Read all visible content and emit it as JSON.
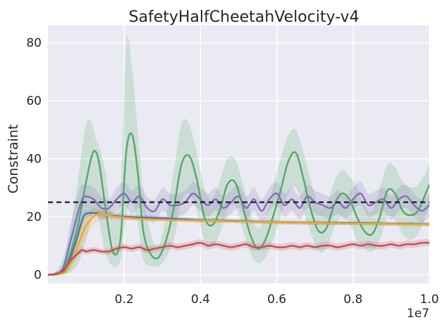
{
  "chart_data": {
    "type": "line",
    "title": "SafetyHalfCheetahVelocity-v4",
    "xlabel": "",
    "ylabel": "Constraint",
    "x_offset_label": "1e7",
    "xlim": [
      0,
      1.0
    ],
    "ylim": [
      -3,
      86
    ],
    "xticks": [
      0.2,
      0.4,
      0.6,
      0.8,
      1.0
    ],
    "xtick_labels": [
      "0.2",
      "0.4",
      "0.6",
      "0.8",
      "1.0"
    ],
    "yticks": [
      0,
      20,
      40,
      60,
      80
    ],
    "ytick_labels": [
      "0",
      "20",
      "40",
      "60",
      "80"
    ],
    "grid": true,
    "threshold": {
      "name": "cost limit",
      "value": 25,
      "style": "dashed",
      "color": "#111111"
    },
    "series": [
      {
        "name": "green",
        "color": "#55a868",
        "band_color": "#55a868",
        "x": [
          0,
          0.02,
          0.04,
          0.06,
          0.08,
          0.1,
          0.115,
          0.125,
          0.135,
          0.15,
          0.17,
          0.19,
          0.205,
          0.22,
          0.235,
          0.25,
          0.27,
          0.29,
          0.31,
          0.33,
          0.35,
          0.37,
          0.39,
          0.41,
          0.43,
          0.45,
          0.47,
          0.49,
          0.51,
          0.53,
          0.55,
          0.57,
          0.59,
          0.61,
          0.63,
          0.65,
          0.67,
          0.69,
          0.71,
          0.73,
          0.75,
          0.77,
          0.79,
          0.81,
          0.83,
          0.85,
          0.87,
          0.89,
          0.91,
          0.93,
          0.95,
          0.97,
          0.99,
          1.0
        ],
        "values": [
          0,
          0.3,
          2,
          8,
          18,
          32,
          41,
          42.5,
          38,
          24,
          8,
          12,
          42,
          48.5,
          36,
          15,
          7,
          6,
          12,
          23,
          38,
          41,
          33,
          20,
          17,
          22,
          31,
          32,
          24,
          14,
          9,
          12,
          20,
          29,
          39,
          42,
          33,
          22,
          15,
          16,
          24,
          28,
          26,
          20,
          15,
          14,
          20,
          29,
          28,
          22,
          20.5,
          22,
          28,
          31
        ],
        "lower": [
          0,
          0,
          0,
          1,
          4,
          12,
          20,
          22,
          18,
          8,
          3,
          5,
          20,
          25,
          18,
          5,
          3,
          3,
          6,
          12,
          25,
          28,
          22,
          12,
          10,
          14,
          22,
          24,
          16,
          8,
          4,
          6,
          12,
          20,
          28,
          30,
          22,
          14,
          8,
          9,
          16,
          20,
          18,
          12,
          9,
          8,
          12,
          20,
          19,
          14,
          12,
          14,
          20,
          24
        ],
        "upper": [
          0,
          1,
          6,
          16,
          34,
          52,
          52,
          47,
          44,
          36,
          20,
          28,
          80,
          72,
          50,
          28,
          14,
          10,
          20,
          36,
          52,
          52,
          42,
          30,
          26,
          32,
          40,
          40,
          32,
          22,
          16,
          20,
          30,
          40,
          48,
          50,
          42,
          32,
          24,
          24,
          32,
          36,
          34,
          30,
          24,
          22,
          30,
          38,
          37,
          32,
          30,
          31,
          35,
          38
        ]
      },
      {
        "name": "purple",
        "color": "#8172b3",
        "band_color": "#8172b3",
        "x": [
          0,
          0.02,
          0.04,
          0.06,
          0.08,
          0.09,
          0.1,
          0.12,
          0.14,
          0.16,
          0.18,
          0.2,
          0.22,
          0.24,
          0.26,
          0.28,
          0.3,
          0.32,
          0.34,
          0.36,
          0.38,
          0.4,
          0.42,
          0.44,
          0.46,
          0.48,
          0.5,
          0.52,
          0.54,
          0.56,
          0.58,
          0.6,
          0.62,
          0.64,
          0.66,
          0.68,
          0.7,
          0.72,
          0.74,
          0.76,
          0.78,
          0.8,
          0.82,
          0.84,
          0.86,
          0.88,
          0.9,
          0.92,
          0.94,
          0.96,
          0.98,
          1.0
        ],
        "values": [
          0,
          0.3,
          2.5,
          12,
          22,
          26,
          27,
          26,
          23,
          23,
          26,
          28,
          25,
          27,
          23,
          22,
          26,
          24,
          24,
          25,
          28,
          26,
          24,
          26,
          23,
          25,
          27,
          23,
          26,
          22,
          26,
          28,
          24,
          26,
          23,
          27,
          25,
          24,
          23,
          25,
          23,
          26,
          28,
          24,
          25,
          26,
          23,
          26,
          27,
          24,
          22,
          24
        ],
        "lower": [
          0,
          0,
          1,
          6,
          16,
          21,
          23,
          22,
          19,
          20,
          22,
          24,
          21,
          23,
          19,
          18,
          22,
          20,
          20,
          21,
          24,
          22,
          20,
          22,
          19,
          21,
          23,
          19,
          22,
          18,
          22,
          24,
          20,
          22,
          19,
          23,
          21,
          20,
          19,
          21,
          19,
          22,
          24,
          20,
          21,
          22,
          19,
          22,
          23,
          20,
          18,
          20
        ],
        "upper": [
          0,
          1,
          4,
          18,
          28,
          31,
          31,
          30,
          27,
          26,
          30,
          32,
          29,
          31,
          27,
          26,
          30,
          28,
          28,
          29,
          32,
          30,
          28,
          30,
          27,
          29,
          31,
          27,
          30,
          26,
          30,
          32,
          28,
          30,
          27,
          31,
          29,
          28,
          27,
          29,
          27,
          30,
          32,
          28,
          29,
          30,
          27,
          30,
          31,
          28,
          26,
          28
        ]
      },
      {
        "name": "blue",
        "color": "#4c72b0",
        "band_color": "#4c72b0",
        "x": [
          0,
          0.03,
          0.05,
          0.07,
          0.09,
          0.1,
          0.12,
          0.15,
          0.2,
          0.3,
          0.4,
          0.5,
          0.6,
          0.7,
          0.8,
          0.9,
          1.0
        ],
        "values": [
          0,
          0.3,
          3,
          10,
          19,
          21,
          21.3,
          20.8,
          20,
          19.5,
          18.8,
          18.5,
          18.1,
          17.9,
          17.8,
          17.6,
          17.4
        ],
        "lower": [
          0,
          0,
          2,
          8,
          17,
          19.5,
          20,
          19.6,
          19,
          18.7,
          18,
          17.8,
          17.4,
          17.2,
          17.1,
          16.9,
          16.7
        ],
        "upper": [
          0,
          1,
          4,
          12,
          21,
          22.5,
          22.6,
          22,
          21,
          20.3,
          19.6,
          19.2,
          18.8,
          18.6,
          18.5,
          18.3,
          18.1
        ]
      },
      {
        "name": "orange",
        "color": "#f5a623",
        "band_color": "#f5a623",
        "x": [
          0,
          0.03,
          0.05,
          0.07,
          0.09,
          0.1,
          0.12,
          0.14,
          0.18,
          0.25,
          0.35,
          0.45,
          0.55,
          0.65,
          0.75,
          0.85,
          0.95,
          1.0
        ],
        "values": [
          0,
          0.2,
          1.5,
          7,
          14,
          17,
          20,
          21,
          20,
          19.2,
          18.8,
          18.5,
          18.2,
          17.9,
          17.7,
          17.6,
          17.4,
          17.3
        ],
        "lower": [
          0,
          0,
          0.5,
          4,
          10,
          13,
          17,
          19,
          19,
          18.5,
          18.2,
          17.9,
          17.6,
          17.3,
          17.1,
          17,
          16.8,
          16.7
        ],
        "upper": [
          0,
          0.6,
          3,
          11,
          18,
          21,
          23,
          23,
          21.2,
          20,
          19.5,
          19.1,
          18.8,
          18.5,
          18.3,
          18.2,
          18,
          17.9
        ]
      },
      {
        "name": "red",
        "color": "#c44e52",
        "band_color": "#c44e52",
        "x": [
          0,
          0.02,
          0.04,
          0.06,
          0.08,
          0.09,
          0.1,
          0.12,
          0.14,
          0.16,
          0.18,
          0.2,
          0.22,
          0.24,
          0.26,
          0.28,
          0.3,
          0.32,
          0.34,
          0.36,
          0.38,
          0.4,
          0.42,
          0.44,
          0.46,
          0.48,
          0.5,
          0.52,
          0.54,
          0.56,
          0.58,
          0.6,
          0.62,
          0.64,
          0.66,
          0.68,
          0.7,
          0.72,
          0.74,
          0.76,
          0.78,
          0.8,
          0.82,
          0.84,
          0.86,
          0.88,
          0.9,
          0.92,
          0.94,
          0.96,
          0.98,
          1.0
        ],
        "values": [
          0,
          0.2,
          1.5,
          5,
          7.5,
          8.5,
          8,
          8.5,
          8,
          8,
          9,
          9.5,
          9,
          9.5,
          8.5,
          9,
          9.5,
          10,
          9.5,
          10,
          10.5,
          11,
          10,
          10.5,
          10,
          9.5,
          10,
          10.5,
          9.5,
          9.5,
          10,
          9.5,
          9.5,
          10,
          9.5,
          10,
          9.5,
          10,
          10,
          9.5,
          10,
          10.5,
          10,
          10.5,
          10,
          10,
          10.5,
          10,
          10.5,
          10.5,
          11,
          11
        ],
        "lower": [
          0,
          0,
          0.5,
          3.5,
          6.5,
          7.5,
          7,
          7.5,
          7,
          7,
          7.8,
          8.3,
          7.8,
          8.3,
          7.3,
          7.8,
          8.3,
          8.8,
          8.3,
          8.8,
          9.3,
          9.8,
          8.8,
          9.3,
          8.8,
          8.3,
          8.8,
          9.3,
          8.3,
          8.3,
          8.8,
          8.3,
          8.3,
          8.8,
          8.3,
          8.8,
          8.3,
          8.8,
          8.8,
          8.3,
          8.8,
          9.3,
          8.8,
          9.3,
          8.8,
          8.8,
          9.3,
          8.8,
          9.3,
          9.3,
          9.8,
          9.8
        ],
        "upper": [
          0,
          0.5,
          2.5,
          6.5,
          8.8,
          9.5,
          9,
          9.5,
          9,
          9,
          10.2,
          10.7,
          10.2,
          10.7,
          9.7,
          10.2,
          10.7,
          11.2,
          10.7,
          11.2,
          11.7,
          12.2,
          11.2,
          11.7,
          11.2,
          10.7,
          11.2,
          11.7,
          10.7,
          10.7,
          11.2,
          10.7,
          10.7,
          11.2,
          10.7,
          11.2,
          10.7,
          11.2,
          11.2,
          10.7,
          11.2,
          11.7,
          11.2,
          11.7,
          11.2,
          11.2,
          11.7,
          11.2,
          11.7,
          11.7,
          12.2,
          12.2
        ]
      }
    ]
  },
  "colors": {
    "plot_background": "#eaeaf2",
    "grid": "#ffffff",
    "text": "#262626"
  }
}
